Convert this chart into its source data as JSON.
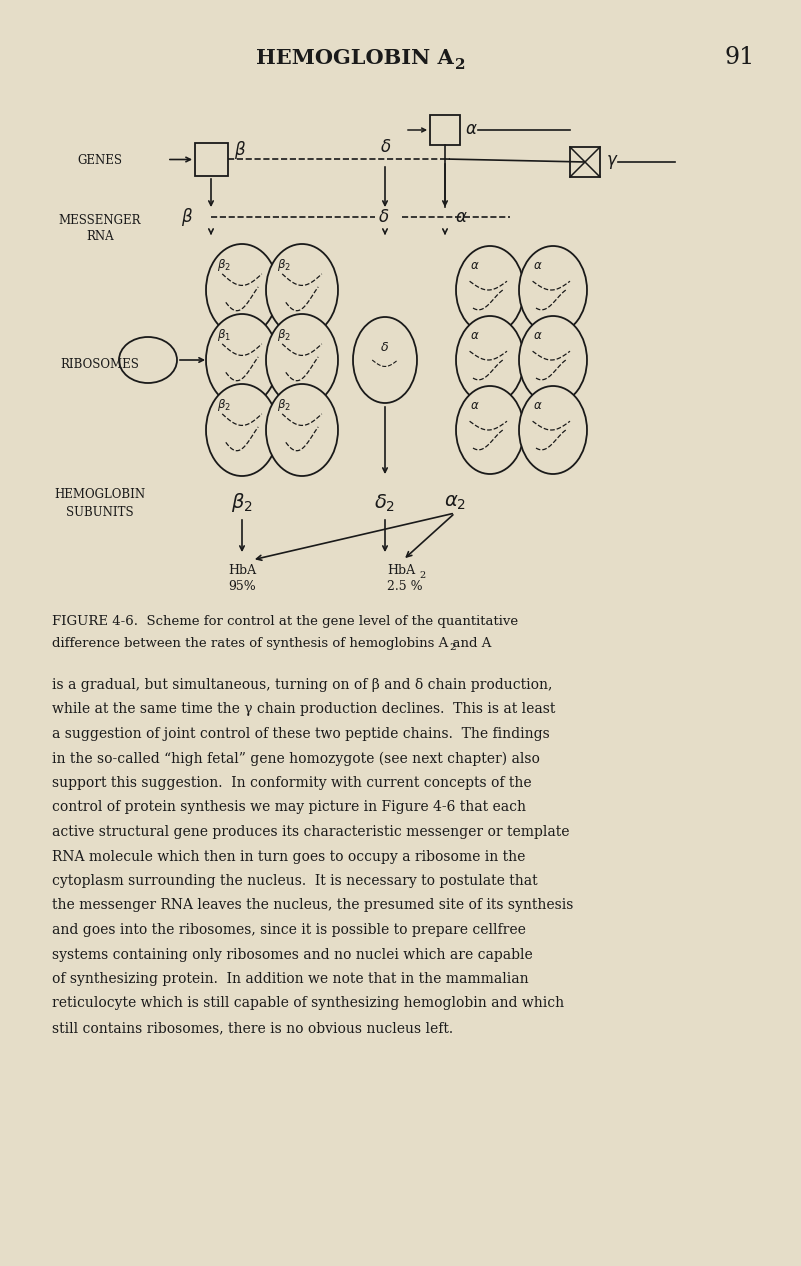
{
  "bg_color": "#e5ddc8",
  "ink_color": "#1a1a1a",
  "title_main": "HEMOGLOBIN A",
  "title_sub": "2",
  "page_number": "91",
  "figure_caption_line1": "FIGURE 4-6.  Scheme for control at the gene level of the quantitative",
  "figure_caption_line2": "difference between the rates of synthesis of hemoglobins A and A",
  "figure_caption_sub": "2",
  "body_text": [
    "is a gradual, but simultaneous, turning on of β and δ chain production,",
    "while at the same time the γ chain production declines.  This is at least",
    "a suggestion of joint control of these two peptide chains.  The findings",
    "in the so-called “high fetal” gene homozygote (see next chapter) also",
    "support this suggestion.  In conformity with current concepts of the",
    "control of protein synthesis we may picture in Figure 4-6 that each",
    "active structural gene produces its characteristic messenger or template",
    "RNA molecule which then in turn goes to occupy a ribosome in the",
    "cytoplasm surrounding the nucleus.  It is necessary to postulate that",
    "the messenger RNA leaves the nucleus, the presumed site of its synthesis",
    "and goes into the ribosomes, since it is possible to prepare cellfree",
    "systems containing only ribosomes and no nuclei which are capable",
    "of synthesizing protein.  In addition we note that in the mammalian",
    "reticulocyte which is still capable of synthesizing hemoglobin and which",
    "still contains ribosomes, there is no obvious nucleus left."
  ]
}
